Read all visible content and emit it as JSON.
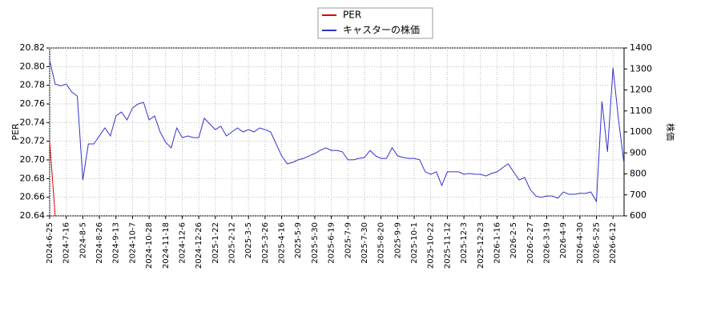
{
  "chart_data": {
    "type": "line",
    "ylabel": "PER",
    "y2label": "株価",
    "ylim": [
      20.64,
      20.82
    ],
    "yticks": [
      20.64,
      20.66,
      20.68,
      {
        "value": 20.7,
        "label": "20.70"
      },
      20.72,
      20.74,
      20.76,
      20.78,
      {
        "value": 20.8,
        "label": "20.80"
      },
      20.82
    ],
    "y2lim": [
      600,
      1400
    ],
    "y2ticks": [
      600,
      700,
      800,
      900,
      1000,
      1100,
      1200,
      1300,
      1400
    ],
    "legend": "upper center",
    "categories": [
      "2024-6-25",
      null,
      null,
      "2024-7-16",
      null,
      null,
      "2024-8-5",
      null,
      null,
      "2024-8-26",
      null,
      null,
      "2024-9-13",
      null,
      null,
      "2024-10-7",
      null,
      null,
      "2024-10-28",
      null,
      null,
      "2024-11-18",
      null,
      null,
      "2024-12-6",
      null,
      null,
      "2024-12-26",
      null,
      null,
      "2025-1-22",
      null,
      null,
      "2025-2-12",
      null,
      null,
      "2025-3-5",
      null,
      null,
      "2025-3-26",
      null,
      null,
      "2025-4-16",
      null,
      null,
      "2025-5-9",
      null,
      null,
      "2025-5-30",
      null,
      null,
      "2025-6-19",
      null,
      null,
      "2025-7-9",
      null,
      null,
      "2025-7-30",
      null,
      null,
      "2025-8-20",
      null,
      null,
      "2025-9-9",
      null,
      null,
      "2025-10-1",
      null,
      null,
      "2025-10-22",
      null,
      null,
      "2025-11-12",
      null,
      null,
      "2025-12-3",
      null,
      null,
      "2025-12-23",
      null,
      null,
      "2026-1-16",
      null,
      null,
      "2026-2-5",
      null,
      null,
      "2026-2-27",
      null,
      null,
      "2026-3-19",
      null,
      null,
      "2026-4-9",
      null,
      null,
      "2026-4-30",
      null,
      null,
      "2026-5-25",
      null,
      null,
      "2026-6-12",
      null,
      null
    ],
    "series": [
      {
        "name": "PER",
        "color": "#dd0000",
        "values": [
          20.72,
          20.64,
          null,
          null,
          null,
          null,
          null,
          null,
          null,
          null,
          null,
          null,
          null,
          null,
          null,
          null,
          null,
          null,
          null,
          null,
          null,
          null,
          null,
          null,
          null,
          null,
          null,
          null,
          null,
          null,
          null,
          null,
          null,
          null,
          null,
          null,
          null,
          null,
          null,
          null,
          null,
          null,
          null,
          null,
          null,
          null,
          null,
          null,
          null,
          null,
          null,
          null,
          null,
          null,
          null,
          null,
          null,
          null,
          null,
          null,
          null,
          null,
          null,
          null,
          null,
          null,
          null,
          null,
          null,
          null,
          null,
          null,
          null,
          null,
          null,
          null,
          null,
          null,
          null,
          null,
          null,
          null,
          null,
          null,
          null,
          null,
          null,
          null,
          null,
          null,
          null,
          null,
          null,
          null,
          null,
          null,
          null,
          null,
          null,
          null,
          null,
          null,
          null,
          null,
          null
        ]
      },
      {
        "name": "キャスターの株価",
        "color": "#3333cc",
        "axis": "y2",
        "values": [
          1340,
          1228,
          1220,
          1228,
          1190,
          1171,
          771,
          943,
          943,
          981,
          1019,
          981,
          1076,
          1095,
          1057,
          1114,
          1133,
          1141,
          1057,
          1076,
          1000,
          950,
          924,
          1019,
          973,
          981,
          973,
          973,
          1065,
          1038,
          1011,
          1027,
          981,
          1000,
          1019,
          1000,
          1011,
          1000,
          1019,
          1011,
          1000,
          943,
          886,
          848,
          855,
          867,
          874,
          886,
          897,
          912,
          924,
          912,
          912,
          905,
          867,
          867,
          874,
          878,
          912,
          886,
          874,
          874,
          924,
          886,
          878,
          874,
          874,
          867,
          810,
          798,
          810,
          745,
          810,
          810,
          810,
          798,
          802,
          798,
          798,
          790,
          802,
          810,
          829,
          848,
          810,
          771,
          783,
          726,
          695,
          688,
          695,
          695,
          684,
          714,
          703,
          703,
          707,
          707,
          714,
          669,
          1145,
          905,
          1305,
          1057,
          848
        ]
      }
    ]
  }
}
